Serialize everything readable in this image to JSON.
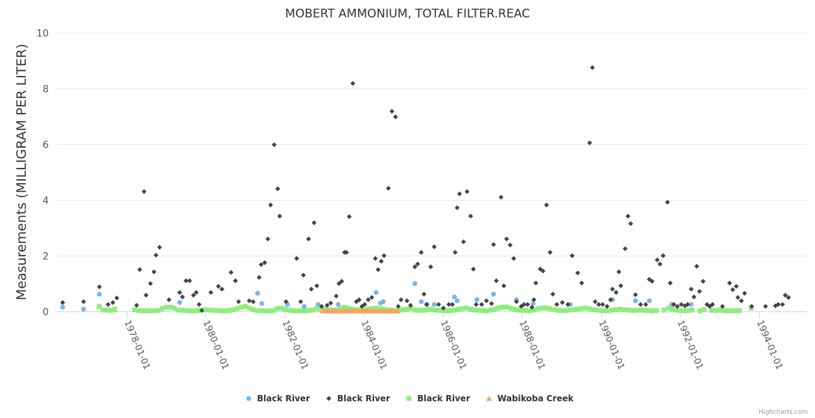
{
  "chart_data": {
    "type": "scatter",
    "title": "MOBERT AMMONIUM, TOTAL FILTER.REAC",
    "xlabel": "",
    "ylabel": "Measurements (MILLIGRAM PER LITER)",
    "xlim": [
      1976.24,
      1995.2
    ],
    "ylim": [
      0,
      10
    ],
    "y_ticks": [
      "0",
      "2",
      "4",
      "6",
      "8",
      "10"
    ],
    "x_ticks": [
      {
        "x": 1978,
        "label": "1978-01-01"
      },
      {
        "x": 1980,
        "label": "1980-01-01"
      },
      {
        "x": 1982,
        "label": "1982-01-01"
      },
      {
        "x": 1984,
        "label": "1984-01-01"
      },
      {
        "x": 1986,
        "label": "1986-01-01"
      },
      {
        "x": 1988,
        "label": "1988-01-01"
      },
      {
        "x": 1990,
        "label": "1990-01-01"
      },
      {
        "x": 1992,
        "label": "1992-01-01"
      },
      {
        "x": 1994,
        "label": "1994-01-01"
      }
    ],
    "grid": true,
    "legend_position": "bottom-center",
    "credits": "Highcharts.com",
    "series": [
      {
        "name": "Black River",
        "marker": "circle",
        "color": "#7cb5ec",
        "points": [
          [
            1976.38,
            0.15
          ],
          [
            1976.91,
            0.08
          ],
          [
            1977.31,
            0.62
          ],
          [
            1979.34,
            0.32
          ],
          [
            1981.31,
            0.65
          ],
          [
            1981.42,
            0.28
          ],
          [
            1982.07,
            0.25
          ],
          [
            1982.49,
            0.18
          ],
          [
            1982.84,
            0.25
          ],
          [
            1983.35,
            0.25
          ],
          [
            1984.31,
            0.68
          ],
          [
            1984.42,
            0.3
          ],
          [
            1984.49,
            0.35
          ],
          [
            1985.29,
            1.0
          ],
          [
            1985.45,
            0.35
          ],
          [
            1985.59,
            0.25
          ],
          [
            1985.78,
            0.25
          ],
          [
            1986.29,
            0.52
          ],
          [
            1986.36,
            0.38
          ],
          [
            1986.86,
            0.42
          ],
          [
            1987.28,
            0.62
          ],
          [
            1987.86,
            0.42
          ],
          [
            1988.28,
            0.28
          ],
          [
            1989.22,
            0.25
          ],
          [
            1990.29,
            0.42
          ],
          [
            1990.87,
            0.38
          ],
          [
            1991.22,
            0.38
          ],
          [
            1991.79,
            0.25
          ],
          [
            1992.28,
            0.25
          ]
        ]
      },
      {
        "name": "Black River",
        "marker": "diamond",
        "color": "#434348",
        "points": [
          [
            1976.38,
            0.32
          ],
          [
            1976.91,
            0.35
          ],
          [
            1977.31,
            0.88
          ],
          [
            1977.53,
            0.25
          ],
          [
            1977.65,
            0.32
          ],
          [
            1977.75,
            0.48
          ],
          [
            1978.25,
            0.22
          ],
          [
            1978.33,
            1.5
          ],
          [
            1978.44,
            4.3
          ],
          [
            1978.49,
            0.58
          ],
          [
            1978.6,
            1.0
          ],
          [
            1978.69,
            1.42
          ],
          [
            1978.74,
            2.02
          ],
          [
            1978.83,
            2.3
          ],
          [
            1979.07,
            0.42
          ],
          [
            1979.34,
            0.68
          ],
          [
            1979.41,
            0.52
          ],
          [
            1979.5,
            1.1
          ],
          [
            1979.59,
            1.1
          ],
          [
            1979.69,
            0.58
          ],
          [
            1979.76,
            0.68
          ],
          [
            1979.83,
            0.25
          ],
          [
            1979.9,
            0.03
          ],
          [
            1980.13,
            0.68
          ],
          [
            1980.32,
            0.9
          ],
          [
            1980.41,
            0.8
          ],
          [
            1980.64,
            1.4
          ],
          [
            1980.75,
            1.1
          ],
          [
            1980.83,
            0.35
          ],
          [
            1981.1,
            0.38
          ],
          [
            1981.2,
            0.35
          ],
          [
            1981.35,
            1.22
          ],
          [
            1981.4,
            1.68
          ],
          [
            1981.49,
            1.75
          ],
          [
            1981.57,
            2.6
          ],
          [
            1981.64,
            3.82
          ],
          [
            1981.73,
            5.98
          ],
          [
            1981.82,
            4.4
          ],
          [
            1981.87,
            3.42
          ],
          [
            1982.03,
            0.35
          ],
          [
            1982.3,
            1.9
          ],
          [
            1982.4,
            0.35
          ],
          [
            1982.47,
            1.3
          ],
          [
            1982.6,
            2.6
          ],
          [
            1982.67,
            0.8
          ],
          [
            1982.74,
            3.18
          ],
          [
            1982.81,
            0.92
          ],
          [
            1982.93,
            0.18
          ],
          [
            1983.07,
            0.22
          ],
          [
            1983.16,
            0.3
          ],
          [
            1983.3,
            0.55
          ],
          [
            1983.37,
            1.0
          ],
          [
            1983.44,
            1.08
          ],
          [
            1983.51,
            2.12
          ],
          [
            1983.56,
            2.12
          ],
          [
            1983.63,
            3.4
          ],
          [
            1983.72,
            8.18
          ],
          [
            1983.81,
            0.35
          ],
          [
            1983.88,
            0.42
          ],
          [
            1983.95,
            0.18
          ],
          [
            1984.02,
            0.25
          ],
          [
            1984.11,
            0.42
          ],
          [
            1984.2,
            0.5
          ],
          [
            1984.29,
            1.9
          ],
          [
            1984.36,
            1.5
          ],
          [
            1984.44,
            1.8
          ],
          [
            1984.51,
            2.0
          ],
          [
            1984.62,
            4.42
          ],
          [
            1984.71,
            7.18
          ],
          [
            1984.8,
            6.98
          ],
          [
            1984.87,
            0.18
          ],
          [
            1984.94,
            0.42
          ],
          [
            1985.09,
            0.38
          ],
          [
            1985.18,
            0.22
          ],
          [
            1985.29,
            1.6
          ],
          [
            1985.36,
            1.7
          ],
          [
            1985.45,
            2.12
          ],
          [
            1985.52,
            0.62
          ],
          [
            1985.59,
            0.25
          ],
          [
            1985.69,
            1.6
          ],
          [
            1985.78,
            2.32
          ],
          [
            1985.89,
            0.25
          ],
          [
            1986.01,
            0.12
          ],
          [
            1986.15,
            0.25
          ],
          [
            1986.24,
            0.25
          ],
          [
            1986.31,
            2.12
          ],
          [
            1986.36,
            3.72
          ],
          [
            1986.42,
            4.22
          ],
          [
            1986.52,
            2.5
          ],
          [
            1986.61,
            4.3
          ],
          [
            1986.7,
            3.42
          ],
          [
            1986.77,
            1.52
          ],
          [
            1986.84,
            0.25
          ],
          [
            1986.98,
            0.25
          ],
          [
            1987.1,
            0.38
          ],
          [
            1987.23,
            0.28
          ],
          [
            1987.28,
            2.4
          ],
          [
            1987.35,
            1.1
          ],
          [
            1987.47,
            4.1
          ],
          [
            1987.54,
            0.92
          ],
          [
            1987.61,
            2.6
          ],
          [
            1987.7,
            2.38
          ],
          [
            1987.79,
            1.9
          ],
          [
            1987.86,
            0.35
          ],
          [
            1987.98,
            0.18
          ],
          [
            1988.05,
            0.25
          ],
          [
            1988.14,
            0.25
          ],
          [
            1988.25,
            0.15
          ],
          [
            1988.3,
            0.42
          ],
          [
            1988.35,
            1.02
          ],
          [
            1988.46,
            1.52
          ],
          [
            1988.53,
            1.45
          ],
          [
            1988.62,
            3.82
          ],
          [
            1988.71,
            2.12
          ],
          [
            1988.78,
            0.62
          ],
          [
            1988.88,
            0.25
          ],
          [
            1989.02,
            0.32
          ],
          [
            1989.16,
            0.25
          ],
          [
            1989.27,
            2.0
          ],
          [
            1989.41,
            1.38
          ],
          [
            1989.51,
            1.02
          ],
          [
            1989.71,
            6.05
          ],
          [
            1989.78,
            8.75
          ],
          [
            1989.85,
            0.35
          ],
          [
            1989.94,
            0.25
          ],
          [
            1990.04,
            0.25
          ],
          [
            1990.15,
            0.18
          ],
          [
            1990.24,
            0.42
          ],
          [
            1990.29,
            0.8
          ],
          [
            1990.38,
            0.68
          ],
          [
            1990.45,
            1.42
          ],
          [
            1990.5,
            0.92
          ],
          [
            1990.61,
            2.25
          ],
          [
            1990.68,
            3.42
          ],
          [
            1990.75,
            3.15
          ],
          [
            1990.87,
            0.6
          ],
          [
            1991.0,
            0.25
          ],
          [
            1991.13,
            0.25
          ],
          [
            1991.22,
            1.15
          ],
          [
            1991.29,
            1.08
          ],
          [
            1991.42,
            1.85
          ],
          [
            1991.49,
            1.7
          ],
          [
            1991.57,
            2.0
          ],
          [
            1991.68,
            3.92
          ],
          [
            1991.75,
            1.02
          ],
          [
            1991.84,
            0.25
          ],
          [
            1991.93,
            0.18
          ],
          [
            1992.03,
            0.25
          ],
          [
            1992.12,
            0.2
          ],
          [
            1992.19,
            0.25
          ],
          [
            1992.28,
            0.8
          ],
          [
            1992.35,
            0.52
          ],
          [
            1992.42,
            1.62
          ],
          [
            1992.49,
            0.72
          ],
          [
            1992.58,
            1.08
          ],
          [
            1992.68,
            0.25
          ],
          [
            1992.75,
            0.18
          ],
          [
            1992.82,
            0.25
          ],
          [
            1993.07,
            0.18
          ],
          [
            1993.25,
            1.02
          ],
          [
            1993.33,
            0.78
          ],
          [
            1993.42,
            0.9
          ],
          [
            1993.46,
            0.5
          ],
          [
            1993.55,
            0.38
          ],
          [
            1993.63,
            0.65
          ],
          [
            1993.81,
            0.18
          ],
          [
            1994.16,
            0.18
          ],
          [
            1994.41,
            0.2
          ],
          [
            1994.48,
            0.25
          ],
          [
            1994.59,
            0.25
          ],
          [
            1994.66,
            0.58
          ],
          [
            1994.74,
            0.5
          ]
        ]
      },
      {
        "name": "Black River",
        "marker": "square",
        "color": "#90ed7d",
        "x_start": 1977.3,
        "x_step": 0.1,
        "values": [
          0.18,
          0.05,
          0.05,
          0.04,
          0.08,
          null,
          null,
          null,
          null,
          0.06,
          0.03,
          0.02,
          0.02,
          0.02,
          0.02,
          0.03,
          0.1,
          0.15,
          0.15,
          0.12,
          0.05,
          0.04,
          0.03,
          0.02,
          0.02,
          0.03,
          0.05,
          0.06,
          0.05,
          0.04,
          0.03,
          0.02,
          0.02,
          0.03,
          0.06,
          0.1,
          0.15,
          0.18,
          0.12,
          0.06,
          0.03,
          0.02,
          0.02,
          0.02,
          0.03,
          0.1,
          0.12,
          0.08,
          0.05,
          0.03,
          0.02,
          0.02,
          0.02,
          0.03,
          0.05,
          0.1,
          0.08,
          0.08,
          0.06,
          0.04,
          0.05,
          0.1,
          0.15,
          0.12,
          0.08,
          0.06,
          0.05,
          0.05,
          0.08,
          0.1,
          0.12,
          0.1,
          0.08,
          0.05,
          0.04,
          0.03,
          0.05,
          0.06,
          0.08,
          0.1,
          0.05,
          0.04,
          0.04,
          0.06,
          0.08,
          0.05,
          0.04,
          0.03,
          0.02,
          0.03,
          0.05,
          0.08,
          0.1,
          0.12,
          0.08,
          0.05,
          0.04,
          0.03,
          0.02,
          0.05,
          0.08,
          0.12,
          0.15,
          0.16,
          0.12,
          0.08,
          0.05,
          0.04,
          0.03,
          0.02,
          0.05,
          0.1,
          0.12,
          0.12,
          0.1,
          0.06,
          0.04,
          0.03,
          0.03,
          0.05,
          0.06,
          0.08,
          0.1,
          0.12,
          0.1,
          0.06,
          0.05,
          0.03,
          0.02,
          0.02,
          0.05,
          0.06,
          0.08,
          0.06,
          0.05,
          0.03,
          0.04,
          0.05,
          0.04,
          0.03,
          0.02,
          0.03,
          null,
          0.05,
          0.12,
          0.08,
          0.05,
          0.03,
          0.02,
          0.03,
          0.05,
          null,
          0.02,
          0.06,
          null,
          0.04,
          0.03,
          0.05,
          0.03,
          0.02,
          0.02,
          0.02,
          0.03,
          null,
          null,
          0.12
        ]
      },
      {
        "name": "Wabikoba Creek",
        "marker": "triangle",
        "color": "#f7a35c",
        "x_start": 1982.95,
        "x_step": 0.05,
        "values": [
          0.02,
          0.03,
          0.02,
          0.01,
          0.02,
          0.03,
          0.02,
          0.02,
          0.01,
          0.02,
          0.03,
          0.02,
          0.02,
          0.01,
          0.02,
          0.03,
          0.02,
          0.02,
          0.01,
          0.02,
          0.02,
          0.03,
          0.02,
          0.01,
          0.02,
          0.03,
          0.02,
          0.02,
          0.01,
          0.02,
          0.03,
          0.02,
          0.02,
          0.01,
          0.02,
          0.03,
          0.02,
          0.02,
          0.01
        ]
      }
    ]
  }
}
